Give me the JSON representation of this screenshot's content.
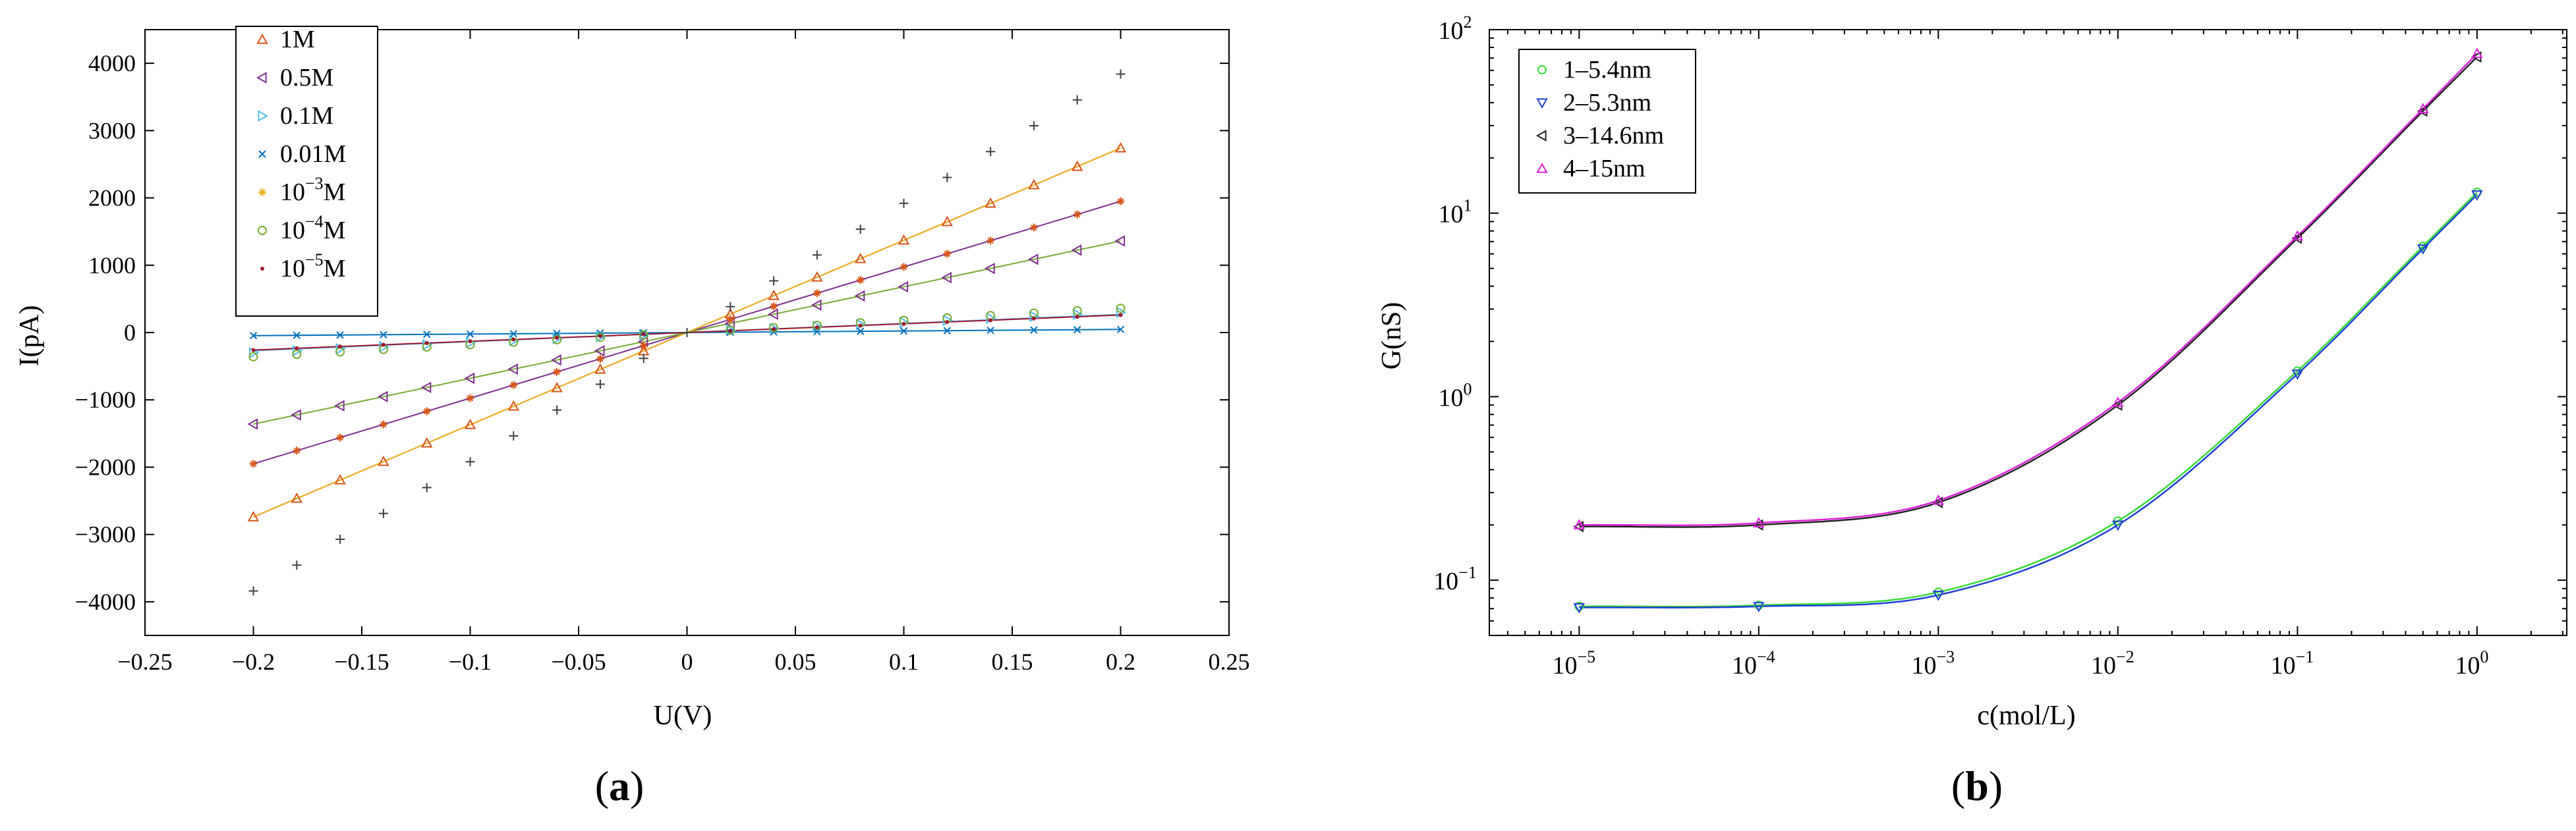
{
  "chart_data": [
    {
      "type": "line",
      "panel_label": "a",
      "xlabel": "U(V)",
      "ylabel": "I(pA)",
      "xlim": [
        -0.25,
        0.25
      ],
      "ylim": [
        -4500,
        4500
      ],
      "xticks": [
        -0.25,
        -0.2,
        -0.15,
        -0.1,
        -0.05,
        0,
        0.05,
        0.1,
        0.15,
        0.2,
        0.25
      ],
      "xtick_labels": [
        "−0.25",
        "−0.2",
        "−0.15",
        "−0.1",
        "−0.05",
        "0",
        "0.05",
        "0.1",
        "0.15",
        "0.2",
        "0.25"
      ],
      "yticks": [
        -4000,
        -3000,
        -2000,
        -1000,
        0,
        1000,
        2000,
        3000,
        4000
      ],
      "ytick_labels": [
        "−4000",
        "−3000",
        "−2000",
        "−1000",
        "0",
        "1000",
        "2000",
        "3000",
        "4000"
      ],
      "grid": false,
      "legend_position": "top-left",
      "x": [
        -0.2,
        -0.18,
        -0.16,
        -0.14,
        -0.12,
        -0.1,
        -0.08,
        -0.06,
        -0.04,
        -0.02,
        0,
        0.02,
        0.04,
        0.06,
        0.08,
        0.1,
        0.12,
        0.14,
        0.16,
        0.18,
        0.2
      ],
      "series": [
        {
          "name": "1M",
          "legend_base": "1M",
          "legend_exp": "",
          "legend_unit": "",
          "marker": "triangle-up",
          "color": "#D95319",
          "line_color": "#D95319",
          "slope": 13700,
          "fit_slope": 13700
        },
        {
          "name": "0.5M",
          "legend_base": "0.5M",
          "legend_exp": "",
          "legend_unit": "",
          "marker": "triangle-left",
          "color": "#7E2F8E",
          "line_color": "#7E2F8E",
          "slope": 6800,
          "fit_slope": 9750
        },
        {
          "name": "0.1M",
          "legend_base": "0.1M",
          "legend_exp": "",
          "legend_unit": "",
          "marker": "triangle-right",
          "color": "#4DBEEE",
          "line_color": "#4DBEEE",
          "slope": 1500,
          "fit_slope": 1350
        },
        {
          "name": "0.01M",
          "legend_base": "0.01M",
          "legend_exp": "",
          "legend_unit": "",
          "marker": "x",
          "color": "#0072BD",
          "line_color": "#0072BD",
          "slope": 230,
          "fit_slope": 230
        },
        {
          "name": "10⁻³M",
          "legend_base": "10",
          "legend_exp": "−3",
          "legend_unit": "M",
          "marker": "asterisk",
          "color": "#EDB120",
          "line_color": "#EDB120",
          "slope": 9750,
          "fit_slope": 13700
        },
        {
          "name": "10⁻⁴M",
          "legend_base": "10",
          "legend_exp": "−4",
          "legend_unit": "M",
          "marker": "circle",
          "color": "#77AC30",
          "line_color": "#77AC30",
          "slope": 1800,
          "fit_slope": 6800
        },
        {
          "name": "10⁻⁵M",
          "legend_base": "10",
          "legend_exp": "−5",
          "legend_unit": "M",
          "marker": "dot",
          "color": "#A2142F",
          "line_color": "#A2142F",
          "slope": 1300,
          "fit_slope": 1300
        }
      ],
      "extra_markers": [
        {
          "name": "plus-set",
          "marker": "plus",
          "color": "#404040",
          "slope": 19200
        },
        {
          "name": "asterisk-set",
          "marker": "asterisk",
          "color": "#D95319",
          "slope": 9750
        }
      ]
    },
    {
      "type": "line",
      "panel_label": "b",
      "xlabel": "c(mol/L)",
      "ylabel": "G(nS)",
      "xscale": "log",
      "yscale": "log",
      "xlim": [
        3.16e-06,
        3.16
      ],
      "ylim": [
        0.05,
        100
      ],
      "xticks": [
        1e-05,
        0.0001,
        0.001,
        0.01,
        0.1,
        1
      ],
      "xtick_labels": [
        {
          "base": "10",
          "exp": "−5"
        },
        {
          "base": "10",
          "exp": "−4"
        },
        {
          "base": "10",
          "exp": "−3"
        },
        {
          "base": "10",
          "exp": "−2"
        },
        {
          "base": "10",
          "exp": "−1"
        },
        {
          "base": "10",
          "exp": "0"
        }
      ],
      "yticks": [
        0.1,
        1,
        10,
        100
      ],
      "ytick_labels": [
        {
          "base": "10",
          "exp": "−1"
        },
        {
          "base": "10",
          "exp": "0"
        },
        {
          "base": "10",
          "exp": "1"
        },
        {
          "base": "10",
          "exp": "2"
        }
      ],
      "grid": false,
      "legend_position": "top-left",
      "x": [
        1e-05,
        0.0001,
        0.001,
        0.01,
        0.1,
        0.5,
        1
      ],
      "series": [
        {
          "name": "1–5.4nm",
          "marker": "circle",
          "color": "#33DD33",
          "line_color": "#33DD33",
          "values": [
            0.072,
            0.073,
            0.086,
            0.21,
            1.38,
            6.6,
            13.0
          ]
        },
        {
          "name": "2–5.3nm",
          "marker": "triangle-down",
          "color": "#1F3FD8",
          "line_color": "#1F3FD8",
          "values": [
            0.071,
            0.072,
            0.083,
            0.2,
            1.33,
            6.4,
            12.6
          ]
        },
        {
          "name": "3–14.6nm",
          "marker": "triangle-left",
          "color": "#222222",
          "line_color": "#222222",
          "values": [
            0.196,
            0.2,
            0.265,
            0.9,
            7.3,
            36,
            71
          ]
        },
        {
          "name": "4–15nm",
          "marker": "triangle-up",
          "color": "#E020E0",
          "line_color": "#E020E0",
          "values": [
            0.2,
            0.205,
            0.272,
            0.93,
            7.5,
            37,
            74
          ]
        }
      ]
    }
  ]
}
